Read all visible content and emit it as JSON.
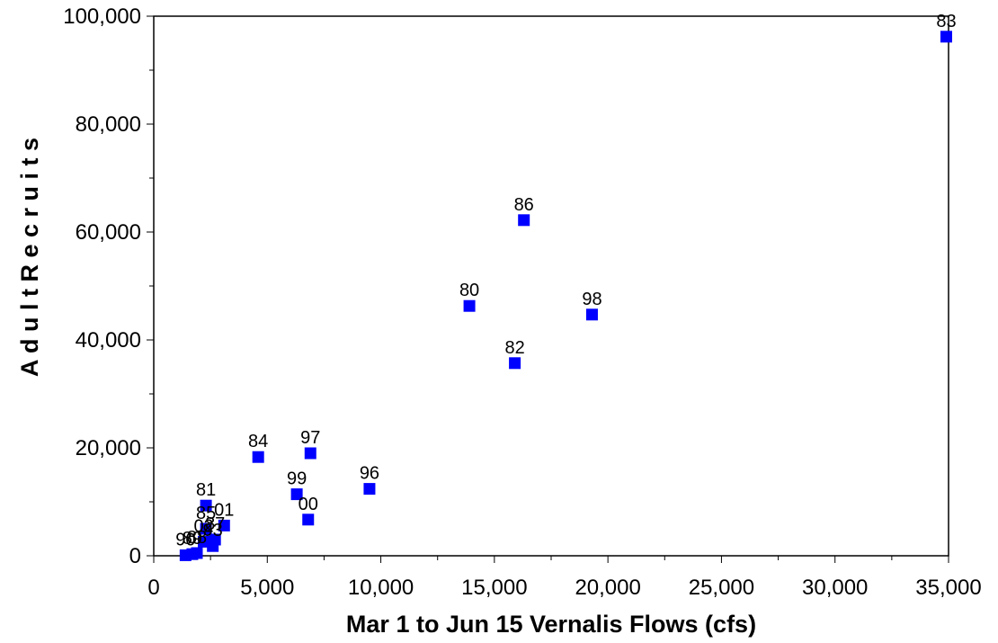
{
  "chart_data": {
    "type": "scatter",
    "xlabel": "Mar 1 to Jun 15 Vernalis Flows (cfs)",
    "ylabel": "A d u l t   R e c r u i t s",
    "xlim": [
      0,
      35000
    ],
    "ylim": [
      0,
      100000
    ],
    "x_ticks": [
      0,
      5000,
      10000,
      15000,
      20000,
      25000,
      30000,
      35000
    ],
    "x_tick_labels": [
      "0",
      "5,000",
      "10,000",
      "15,000",
      "20,000",
      "25,000",
      "30,000",
      "35,000"
    ],
    "y_ticks": [
      0,
      20000,
      40000,
      60000,
      80000,
      100000
    ],
    "y_tick_labels": [
      "0",
      "20,000",
      "40,000",
      "60,000",
      "80,000",
      "100,000"
    ],
    "grid": false,
    "marker_color": "#0000ff",
    "points": [
      {
        "label": "83",
        "x": 34900,
        "y": 96200
      },
      {
        "label": "86",
        "x": 16300,
        "y": 62200
      },
      {
        "label": "80",
        "x": 13900,
        "y": 46300
      },
      {
        "label": "98",
        "x": 19300,
        "y": 44700
      },
      {
        "label": "82",
        "x": 15900,
        "y": 35700
      },
      {
        "label": "84",
        "x": 4600,
        "y": 18300
      },
      {
        "label": "97",
        "x": 6900,
        "y": 19000
      },
      {
        "label": "96",
        "x": 9500,
        "y": 12400
      },
      {
        "label": "99",
        "x": 6300,
        "y": 11400
      },
      {
        "label": "00",
        "x": 6800,
        "y": 6700
      },
      {
        "label": "81",
        "x": 2300,
        "y": 9300
      },
      {
        "label": "01",
        "x": 3100,
        "y": 5600
      },
      {
        "label": "85",
        "x": 2300,
        "y": 5000
      },
      {
        "label": "87",
        "x": 2700,
        "y": 3000
      },
      {
        "label": "02",
        "x": 2200,
        "y": 2600
      },
      {
        "label": "93",
        "x": 2600,
        "y": 1800
      },
      {
        "label": "88",
        "x": 1900,
        "y": 500
      },
      {
        "label": "89",
        "x": 1700,
        "y": 300
      },
      {
        "label": "90",
        "x": 1400,
        "y": 100
      }
    ]
  }
}
